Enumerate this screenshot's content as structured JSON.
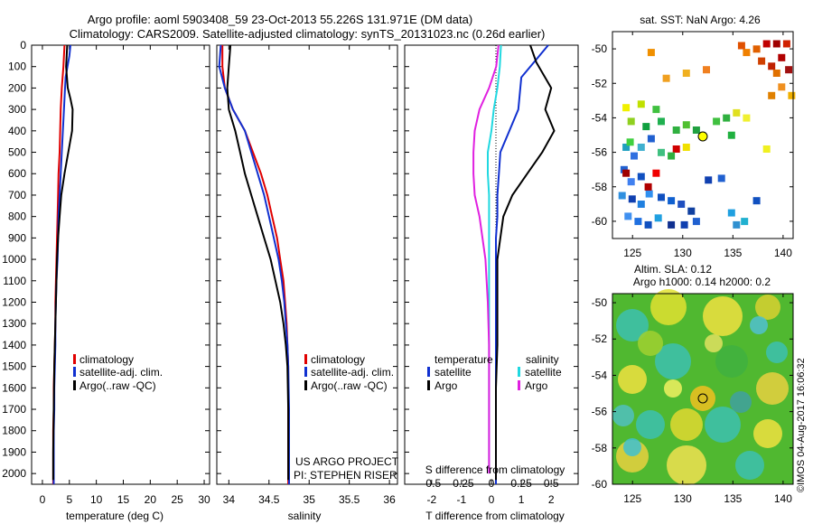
{
  "header": {
    "line1": "Argo profile: aoml 5903408_59 23-Oct-2013 55.226S 131.971E (DM data)",
    "line2": "Climatology: CARS2009. Satellite-adjusted climatology: synTS_20131023.nc (0.26d earlier)"
  },
  "colors": {
    "climatology": "#e00000",
    "satellite": "#1030d0",
    "argo": "#000000",
    "sat_salinity": "#20d8e0",
    "argo_salinity": "#e020e0"
  },
  "depth_ticks": [
    "0",
    "100",
    "200",
    "300",
    "400",
    "500",
    "600",
    "700",
    "800",
    "900",
    "1000",
    "1100",
    "1200",
    "1300",
    "1400",
    "1500",
    "1600",
    "1700",
    "1800",
    "1900",
    "2000"
  ],
  "panel_temperature": {
    "xlabel": "temperature (deg C)",
    "xticks": [
      "0",
      "5",
      "10",
      "15",
      "20",
      "25",
      "30"
    ],
    "legend": [
      "climatology",
      "satellite-adj. clim.",
      "Argo(..raw -QC)"
    ]
  },
  "panel_salinity": {
    "xlabel": "salinity",
    "xticks": [
      "34",
      "34.5",
      "35",
      "35.5",
      "36"
    ],
    "legend": [
      "climatology",
      "satellite-adj. clim.",
      "Argo(..raw -QC)"
    ],
    "credit1": "US ARGO PROJECT",
    "credit2": "PI: STEPHEN RISER"
  },
  "panel_diff": {
    "xlabel": "T difference from climatology",
    "xlabel_top": "S difference from climatology",
    "t_ticks": [
      "-2",
      "-1",
      "0",
      "1",
      "2"
    ],
    "s_ticks": [
      "-0.5",
      "-0.25",
      "0",
      "0.25",
      "0.5"
    ],
    "legend_temp_title": "temperature",
    "legend_sal_title": "salinity",
    "legend_items": [
      "satellite",
      "Argo"
    ]
  },
  "map_sst": {
    "title": "sat. SST: NaN Argo: 4.26",
    "yticks": [
      "-50",
      "-52",
      "-54",
      "-56",
      "-58",
      "-60"
    ],
    "xticks": [
      "125",
      "130",
      "135",
      "140"
    ]
  },
  "map_sla": {
    "title1": "Altim. SLA: 0.12",
    "title2": "Argo h1000: 0.14 h2000: 0.2",
    "yticks": [
      "-50",
      "-52",
      "-54",
      "-56",
      "-58",
      "-60"
    ],
    "xticks": [
      "125",
      "130",
      "135",
      "140"
    ]
  },
  "stamp": "©IMOS 04-Aug-2017 16:06:32",
  "chart_data": [
    {
      "type": "line",
      "title": "",
      "xlabel": "temperature (deg C)",
      "ylabel": "",
      "xlim": [
        -2,
        31
      ],
      "ylim": [
        2050,
        0
      ],
      "series": [
        {
          "name": "climatology",
          "x": [
            4.1,
            3.9,
            3.6,
            3.4,
            3.3,
            3.2,
            3.0,
            2.9,
            2.8,
            2.7,
            2.6,
            2.5,
            2.4,
            2.4,
            2.3,
            2.2,
            2.1,
            2.1,
            2.0,
            2.0,
            2.0
          ],
          "y": [
            0,
            100,
            200,
            300,
            400,
            500,
            600,
            700,
            800,
            900,
            1000,
            1100,
            1200,
            1300,
            1400,
            1500,
            1600,
            1700,
            1800,
            1900,
            2050
          ]
        },
        {
          "name": "satellite-adj. clim.",
          "x": [
            5.2,
            5.0,
            4.3,
            4.0,
            3.8,
            3.6,
            3.4,
            3.2,
            3.0,
            2.9,
            2.8,
            2.6,
            2.5,
            2.4,
            2.4,
            2.3,
            2.2,
            2.2,
            2.1,
            2.1,
            2.1
          ],
          "y": [
            0,
            50,
            150,
            300,
            400,
            500,
            600,
            700,
            800,
            900,
            1000,
            1100,
            1200,
            1300,
            1400,
            1500,
            1600,
            1700,
            1800,
            1900,
            2050
          ]
        },
        {
          "name": "Argo(..raw -QC)",
          "x": [
            4.6,
            4.4,
            4.7,
            5.2,
            5.6,
            5.5,
            4.8,
            4.1,
            3.5,
            3.2,
            2.9,
            2.7,
            2.6,
            2.5,
            2.4,
            2.3,
            2.2,
            2.1,
            2.0,
            2.0
          ],
          "y": [
            0,
            100,
            200,
            250,
            300,
            400,
            500,
            600,
            700,
            800,
            900,
            1000,
            1100,
            1200,
            1300,
            1400,
            1500,
            1700,
            1900,
            2030
          ]
        }
      ]
    },
    {
      "type": "line",
      "title": "",
      "xlabel": "salinity",
      "ylabel": "",
      "xlim": [
        33.85,
        36.1
      ],
      "ylim": [
        2050,
        0
      ],
      "series": [
        {
          "name": "climatology",
          "x": [
            33.92,
            33.92,
            33.95,
            34.05,
            34.2,
            34.3,
            34.4,
            34.48,
            34.54,
            34.6,
            34.64,
            34.68,
            34.7,
            34.72,
            34.73,
            34.74,
            34.74,
            34.74,
            34.74
          ],
          "y": [
            0,
            100,
            200,
            300,
            400,
            500,
            600,
            700,
            800,
            900,
            1000,
            1100,
            1200,
            1300,
            1400,
            1500,
            1700,
            1900,
            2050
          ]
        },
        {
          "name": "satellite-adj. clim.",
          "x": [
            33.9,
            33.88,
            33.95,
            34.05,
            34.2,
            34.28,
            34.36,
            34.44,
            34.5,
            34.56,
            34.62,
            34.66,
            34.69,
            34.71,
            34.73,
            34.74,
            34.75,
            34.75
          ],
          "y": [
            0,
            100,
            200,
            300,
            400,
            500,
            600,
            700,
            800,
            900,
            1000,
            1100,
            1200,
            1300,
            1400,
            1500,
            1700,
            2050
          ]
        },
        {
          "name": "Argo(..raw -QC)",
          "x": [
            34.02,
            34.0,
            33.98,
            34.0,
            34.08,
            34.14,
            34.2,
            34.28,
            34.36,
            34.44,
            34.52,
            34.58,
            34.64,
            34.68,
            34.71,
            34.73,
            34.74,
            34.74,
            34.74
          ],
          "y": [
            0,
            100,
            200,
            300,
            400,
            500,
            600,
            700,
            800,
            900,
            1000,
            1100,
            1200,
            1300,
            1400,
            1500,
            1700,
            1900,
            2030
          ]
        }
      ]
    },
    {
      "type": "line",
      "title": "",
      "xlabel": "T difference from climatology",
      "ylabel": "",
      "xlim": [
        -2.9,
        2.9
      ],
      "ylim": [
        2050,
        0
      ],
      "series": [
        {
          "name": "satellite (temperature)",
          "x": [
            1.9,
            1.6,
            1.0,
            0.9,
            0.6,
            0.3,
            0.25,
            0.2,
            0.2,
            0.15,
            0.15,
            0.15,
            0.15,
            0.15,
            0.15,
            0.15,
            0.15
          ],
          "y": [
            0,
            50,
            150,
            300,
            400,
            500,
            600,
            700,
            800,
            900,
            1000,
            1200,
            1400,
            1600,
            1800,
            1900,
            2050
          ]
        },
        {
          "name": "Argo (temperature)",
          "x": [
            1.3,
            1.5,
            2.0,
            1.8,
            2.1,
            1.7,
            1.2,
            0.7,
            0.4,
            0.3,
            0.2,
            0.2,
            0.2,
            0.15,
            0.15,
            0.15,
            0.15
          ],
          "y": [
            0,
            80,
            200,
            300,
            400,
            500,
            600,
            700,
            800,
            900,
            1000,
            1200,
            1400,
            1600,
            1800,
            1900,
            2030
          ]
        },
        {
          "name": "satellite (salinity)",
          "x": [
            0.08,
            0.07,
            0.05,
            0.02,
            0.0,
            -0.03,
            -0.03,
            -0.02,
            -0.02,
            -0.02,
            -0.02,
            -0.02,
            -0.02,
            -0.02,
            -0.02
          ],
          "y": [
            0,
            100,
            200,
            300,
            400,
            500,
            600,
            700,
            800,
            1000,
            1200,
            1400,
            1600,
            1800,
            2000
          ]
        },
        {
          "name": "Argo (salinity)",
          "x": [
            0.06,
            0.04,
            -0.02,
            -0.1,
            -0.14,
            -0.15,
            -0.15,
            -0.14,
            -0.1,
            -0.05,
            -0.03,
            -0.02,
            -0.02,
            -0.02,
            -0.02
          ],
          "y": [
            0,
            100,
            200,
            300,
            400,
            500,
            600,
            700,
            800,
            1000,
            1200,
            1400,
            1600,
            1800,
            2000
          ]
        }
      ]
    },
    {
      "type": "heatmap",
      "title": "sat. SST: NaN Argo: 4.26",
      "xlabel": "",
      "ylabel": "",
      "xlim": [
        123,
        141
      ],
      "ylim": [
        -61,
        -49
      ],
      "argo_position": [
        131.971,
        -55.226
      ]
    },
    {
      "type": "heatmap",
      "title": "Altim. SLA: 0.12",
      "xlabel": "",
      "ylabel": "",
      "xlim": [
        123,
        141
      ],
      "ylim": [
        -60,
        -49.5
      ],
      "argo_position": [
        131.971,
        -55.226
      ]
    }
  ]
}
